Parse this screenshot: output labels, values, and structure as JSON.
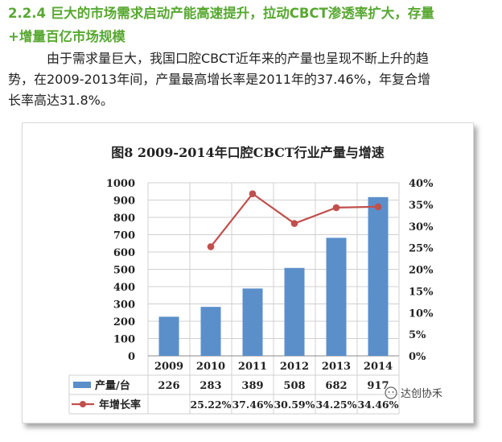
{
  "heading": {
    "line1": "2.2.4 巨大的市场需求启动产能高速提升，拉动CBCT渗透率扩大，存量",
    "line2": "+增量百亿市场规模"
  },
  "paragraph": {
    "line1": "由于需求量巨大，我国口腔CBCT近年来的产量也呈现不断上升的趋",
    "line2": "势，在2009-2013年间，产量最高增长率是2011年的37.46%，年复合增",
    "line3": "长率高达31.8%。"
  },
  "watermark": "达创协禾",
  "chart_data": {
    "type": "bar",
    "title": "图8  2009-2014年口腔CBCT行业产量与增速",
    "categories": [
      "2009",
      "2010",
      "2011",
      "2012",
      "2013",
      "2014"
    ],
    "left_axis": {
      "range": [
        0,
        1000
      ],
      "ticks": [
        "0",
        "100",
        "200",
        "300",
        "400",
        "500",
        "600",
        "700",
        "800",
        "900",
        "1000"
      ]
    },
    "right_axis": {
      "range": [
        0,
        40
      ],
      "ticks": [
        "0%",
        "5%",
        "10%",
        "15%",
        "20%",
        "25%",
        "30%",
        "35%",
        "40%"
      ]
    },
    "series": [
      {
        "name": "产量/台",
        "kind": "bar",
        "axis": "left",
        "color": "#5b8fca",
        "values": [
          226,
          283,
          389,
          508,
          682,
          917
        ],
        "labels": [
          "226",
          "283",
          "389",
          "508",
          "682",
          "917"
        ]
      },
      {
        "name": "年增长率",
        "kind": "line",
        "axis": "right",
        "color": "#c0504d",
        "values": [
          null,
          25.22,
          37.46,
          30.59,
          34.25,
          34.46
        ],
        "labels": [
          "",
          "25.22%",
          "37.46%",
          "30.59%",
          "34.25%",
          "34.46%"
        ]
      }
    ],
    "grid": true,
    "legend": "data-table"
  }
}
